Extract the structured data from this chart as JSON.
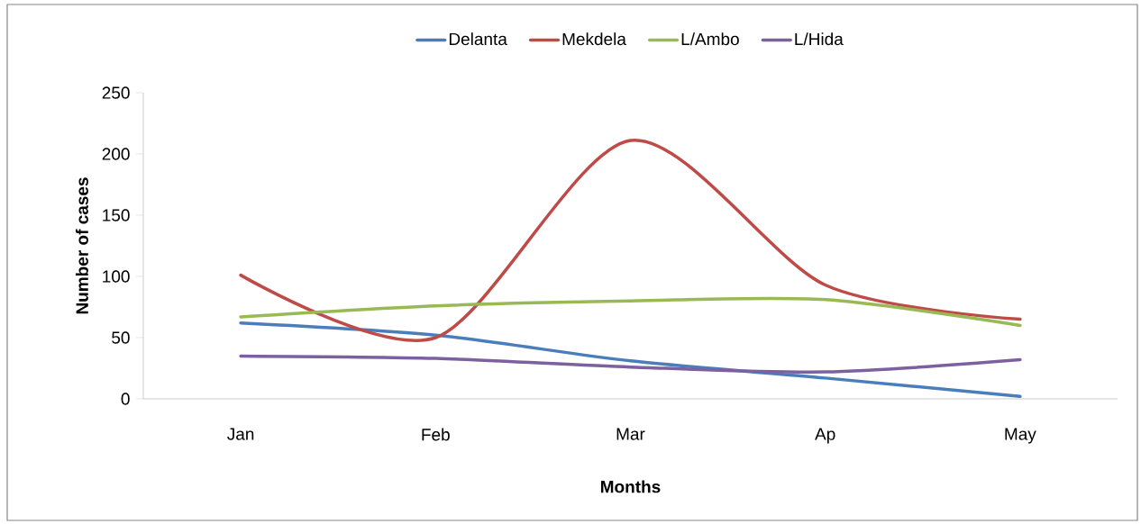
{
  "chart_data": {
    "type": "line",
    "xlabel": "Months",
    "ylabel": "Number of cases",
    "categories": [
      "Jan",
      "Feb",
      "Mar",
      "Ap",
      "May"
    ],
    "series": [
      {
        "name": "Delanta",
        "color": "#4a7ebb",
        "values": [
          62,
          52,
          31,
          17,
          2
        ]
      },
      {
        "name": "Mekdela",
        "color": "#be4b48",
        "values": [
          101,
          50,
          211,
          93,
          65
        ]
      },
      {
        "name": "L/Ambo",
        "color": "#98b954",
        "values": [
          67,
          76,
          80,
          81,
          60
        ]
      },
      {
        "name": "L/Hida",
        "color": "#7d60a0",
        "values": [
          35,
          33,
          26,
          22,
          32
        ]
      }
    ],
    "ylim": [
      0,
      250
    ],
    "yticks": [
      0,
      50,
      100,
      150,
      200,
      250
    ],
    "grid": false,
    "legend": "top",
    "marker": "none",
    "line_style": "solid"
  }
}
